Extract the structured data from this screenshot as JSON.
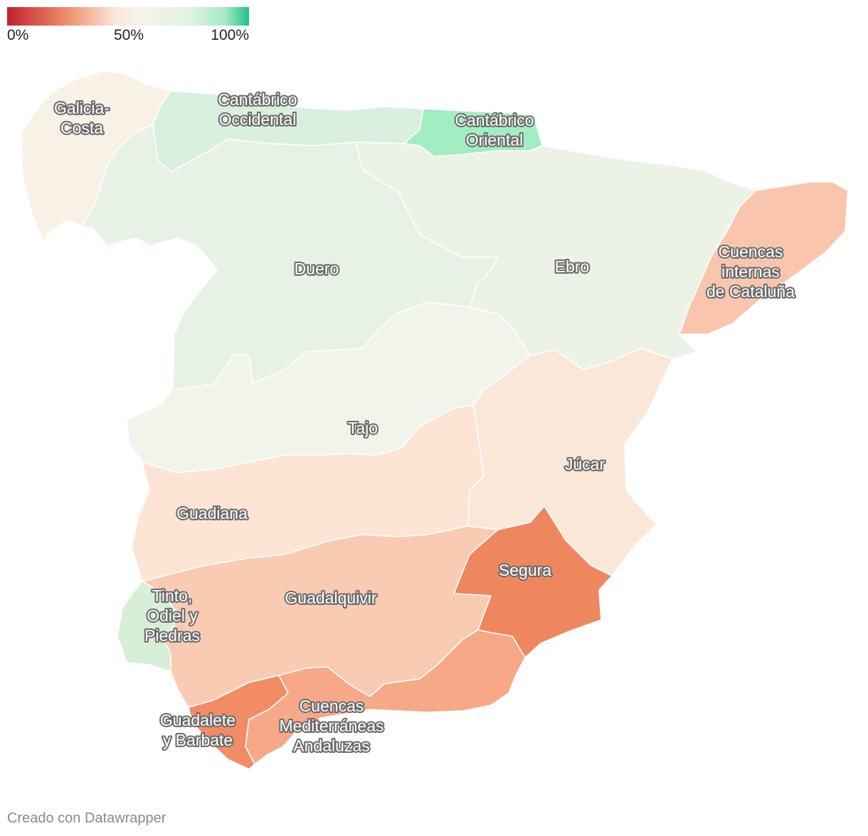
{
  "legend": {
    "tick_min": "0%",
    "tick_mid": "50%",
    "tick_max": "100%",
    "color_low": "#c3202e",
    "color_mid": "#f7f4ea",
    "color_high": "#1fbf8a"
  },
  "regions": {
    "galicia_costa": {
      "lines": [
        "Galicia-",
        "Costa"
      ],
      "color": "#f8f1e6"
    },
    "cantabrico_occidental": {
      "lines": [
        "Cantábrico",
        "Occidental"
      ],
      "color": "#d9f0de"
    },
    "cantabrico_oriental": {
      "lines": [
        "Cantábrico",
        "Oriental"
      ],
      "color": "#a2edc1"
    },
    "duero": {
      "lines": [
        "Duero"
      ],
      "color": "#e8f1e5"
    },
    "ebro": {
      "lines": [
        "Ebro"
      ],
      "color": "#edf2e7"
    },
    "cataluna": {
      "lines": [
        "Cuencas",
        "internas",
        "de Cataluña"
      ],
      "color": "#f9c6ad"
    },
    "tajo": {
      "lines": [
        "Tajo"
      ],
      "color": "#f1f4ea"
    },
    "jucar": {
      "lines": [
        "Júcar"
      ],
      "color": "#fae7d8"
    },
    "guadiana": {
      "lines": [
        "Guadiana"
      ],
      "color": "#fde4d4"
    },
    "guadalquivir": {
      "lines": [
        "Guadalquivir"
      ],
      "color": "#facbb3"
    },
    "segura": {
      "lines": [
        "Segura"
      ],
      "color": "#ee875e"
    },
    "tinto": {
      "lines": [
        "Tinto,",
        "Odiel y",
        "Piedras"
      ],
      "color": "#d7efd7"
    },
    "guadalete": {
      "lines": [
        "Guadalete",
        "y Barbate"
      ],
      "color": "#f18c64"
    },
    "mediterraneas": {
      "lines": [
        "Cuencas",
        "Mediterráneas",
        "Andaluzas"
      ],
      "color": "#f6a887"
    }
  },
  "footer": {
    "credit": "Creado con Datawrapper"
  }
}
